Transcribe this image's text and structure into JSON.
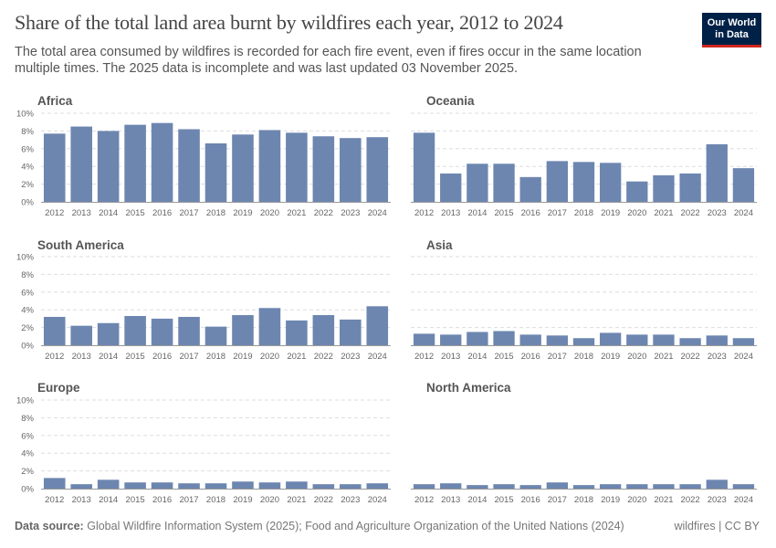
{
  "title": "Share of the total land area burnt by wildfires each year, 2012 to 2024",
  "subtitle": "The total area consumed by wildfires is recorded for each fire event, even if fires occur in the same location multiple times. The 2025 data is incomplete and was last updated 03 November 2025.",
  "logo": {
    "line1": "Our World",
    "line2": "in Data",
    "bg_color": "#002147",
    "accent_color": "#ce261e"
  },
  "footer": {
    "source_label": "Data source:",
    "source_text": "Global Wildfire Information System (2025); Food and Agriculture Organization of the United Nations (2024)",
    "license": "wildfires | CC BY"
  },
  "colors": {
    "bar": "#6d86b0",
    "grid": "#dddddd",
    "axis_text": "#666666",
    "panel_title": "#555555"
  },
  "chart_data": [
    {
      "type": "bar",
      "title": "Africa",
      "categories": [
        "2012",
        "2013",
        "2014",
        "2015",
        "2016",
        "2017",
        "2018",
        "2019",
        "2020",
        "2021",
        "2022",
        "2023",
        "2024"
      ],
      "values": [
        7.7,
        8.5,
        8.0,
        8.7,
        8.9,
        8.2,
        6.6,
        7.6,
        8.1,
        7.8,
        7.4,
        7.2,
        7.3
      ],
      "yticks": [
        "0%",
        "2%",
        "4%",
        "6%",
        "8%",
        "10%"
      ],
      "ylim": [
        0,
        10
      ],
      "grid": true
    },
    {
      "type": "bar",
      "title": "Oceania",
      "categories": [
        "2012",
        "2013",
        "2014",
        "2015",
        "2016",
        "2017",
        "2018",
        "2019",
        "2020",
        "2021",
        "2022",
        "2023",
        "2024"
      ],
      "values": [
        7.8,
        3.2,
        4.3,
        4.3,
        2.8,
        4.6,
        4.5,
        4.4,
        2.3,
        3.0,
        3.2,
        6.5,
        3.8
      ],
      "yticks": [
        "0%",
        "2%",
        "4%",
        "6%",
        "8%",
        "10%"
      ],
      "ylim": [
        0,
        10
      ],
      "grid": true
    },
    {
      "type": "bar",
      "title": "South America",
      "categories": [
        "2012",
        "2013",
        "2014",
        "2015",
        "2016",
        "2017",
        "2018",
        "2019",
        "2020",
        "2021",
        "2022",
        "2023",
        "2024"
      ],
      "values": [
        3.2,
        2.2,
        2.5,
        3.3,
        3.0,
        3.2,
        2.1,
        3.4,
        4.2,
        2.8,
        3.4,
        2.9,
        4.4
      ],
      "yticks": [
        "0%",
        "2%",
        "4%",
        "6%",
        "8%",
        "10%"
      ],
      "ylim": [
        0,
        10
      ],
      "grid": true
    },
    {
      "type": "bar",
      "title": "Asia",
      "categories": [
        "2012",
        "2013",
        "2014",
        "2015",
        "2016",
        "2017",
        "2018",
        "2019",
        "2020",
        "2021",
        "2022",
        "2023",
        "2024"
      ],
      "values": [
        1.3,
        1.2,
        1.5,
        1.6,
        1.2,
        1.1,
        0.8,
        1.4,
        1.2,
        1.2,
        0.8,
        1.1,
        0.8
      ],
      "yticks": [
        "0%",
        "2%",
        "4%",
        "6%",
        "8%",
        "10%"
      ],
      "ylim": [
        0,
        10
      ],
      "grid": true
    },
    {
      "type": "bar",
      "title": "Europe",
      "categories": [
        "2012",
        "2013",
        "2014",
        "2015",
        "2016",
        "2017",
        "2018",
        "2019",
        "2020",
        "2021",
        "2022",
        "2023",
        "2024"
      ],
      "values": [
        1.2,
        0.5,
        1.0,
        0.7,
        0.7,
        0.6,
        0.6,
        0.8,
        0.7,
        0.8,
        0.5,
        0.5,
        0.6
      ],
      "yticks": [
        "0%",
        "2%",
        "4%",
        "6%",
        "8%",
        "10%"
      ],
      "ylim": [
        0,
        10
      ],
      "grid": true
    },
    {
      "type": "bar",
      "title": "North America",
      "categories": [
        "2012",
        "2013",
        "2014",
        "2015",
        "2016",
        "2017",
        "2018",
        "2019",
        "2020",
        "2021",
        "2022",
        "2023",
        "2024"
      ],
      "values": [
        0.5,
        0.6,
        0.4,
        0.5,
        0.4,
        0.7,
        0.4,
        0.5,
        0.5,
        0.5,
        0.5,
        1.0,
        0.5
      ],
      "yticks": [
        "0%",
        "2%",
        "4%",
        "6%",
        "8%",
        "10%"
      ],
      "ylim": [
        0,
        10
      ],
      "grid": false
    }
  ]
}
